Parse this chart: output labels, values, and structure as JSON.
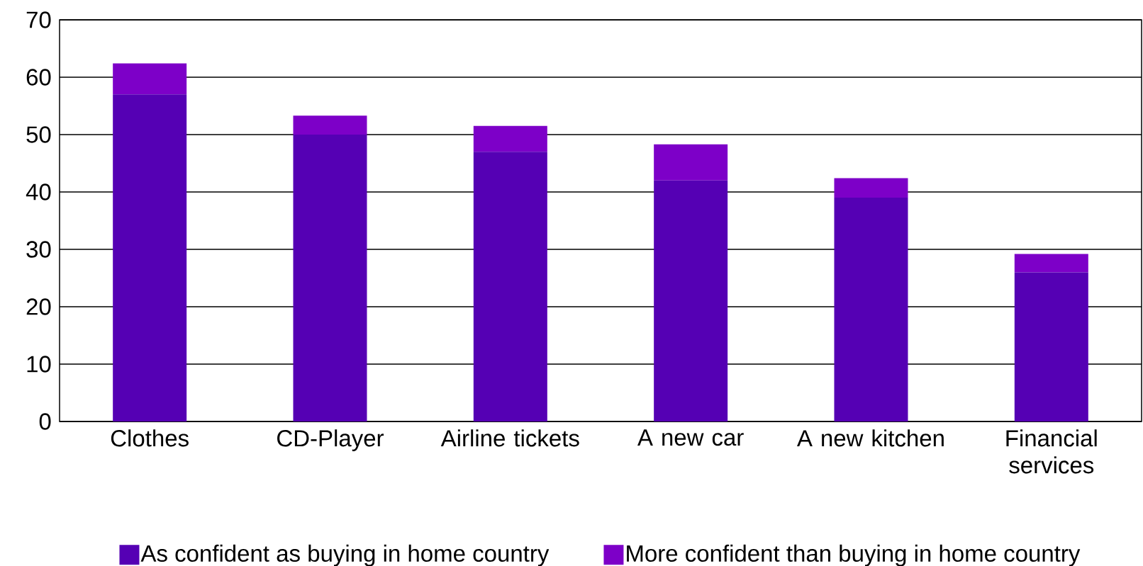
{
  "chart_data": {
    "type": "bar",
    "stacked": true,
    "categories": [
      "Clothes",
      "CD-Player",
      "Airline tickets",
      "A new car",
      "A new kitchen",
      "Financial services"
    ],
    "series": [
      {
        "name": "As confident as buying in home country",
        "color": "#5500b4",
        "values": [
          57,
          50,
          47,
          42,
          39,
          26
        ]
      },
      {
        "name": "More confident than buying in home country",
        "color": "#7d00c8",
        "values": [
          5.4,
          3.3,
          4.5,
          6.3,
          3.4,
          3.2
        ]
      }
    ],
    "ylim": [
      0,
      70
    ],
    "yticks": [
      0,
      10,
      20,
      30,
      40,
      50,
      60,
      70
    ],
    "grid": "y",
    "legend": "bottom"
  }
}
